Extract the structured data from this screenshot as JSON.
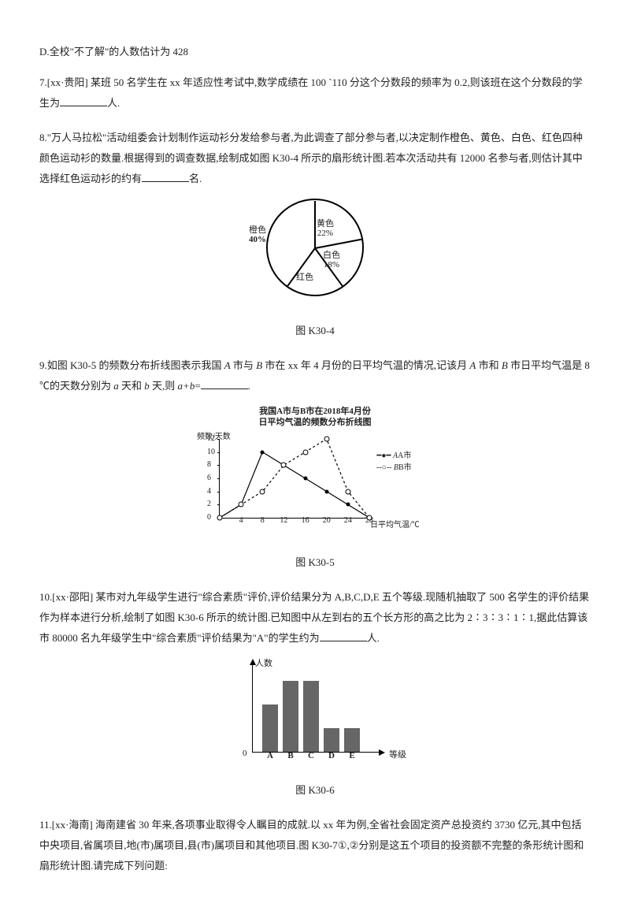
{
  "q_d": "D.全校\"不了解\"的人数估计为 428",
  "q7": {
    "text_a": "7.[xx·贵阳] 某班 50 名学生在 xx 年适应性考试中,数学成绩在 100 `110 分这个分数段的频率为 0.2,则该班在这个分数段的学生为",
    "text_b": "人."
  },
  "q8": {
    "p1": "8.\"万人马拉松\"活动组委会计划制作运动衫分发给参与者,为此调查了部分参与者,以决定制作橙色、黄色、白色、红色四种颜色运动衫的数量.根据得到的调查数据,绘制成如图 K30-4 所示的扇形统计图.若本次活动共有 12000 名参与者,则估计其中选择红色运动衫的约有",
    "p2": "名.",
    "caption": "图 K30-4",
    "pie": {
      "slices": [
        {
          "label": "橙色",
          "value": "40%",
          "angle": -90
        },
        {
          "label": "黄色",
          "value": "22%",
          "angle": 0
        },
        {
          "label": "白色",
          "value": "18%",
          "angle": 79.2
        },
        {
          "label": "红色",
          "value": "",
          "angle": 144
        }
      ]
    }
  },
  "q9": {
    "text_a": "9.如图 K30-5 的频数分布折线图表示我国 ",
    "text_b": " 市与 ",
    "text_c": " 市在 xx 年 4 月份的日平均气温的情况,记该月 ",
    "text_d": " 市和 ",
    "text_e": " 市日平均气温是 8 ℃的天数分别为 ",
    "text_f": " 天和 ",
    "text_g": " 天,则 ",
    "text_h": "=",
    "A": "A",
    "B": "B",
    "a": "a",
    "b": "b",
    "ab": "a+b",
    "caption": "图 K30-5",
    "chart": {
      "title1": "我国A市与B市在2018年4月份",
      "title2": "日平均气温的频数分布折线图",
      "ylabel": "频数/天数",
      "xlabel": "日平均气温/℃",
      "legendA": "A市",
      "legendB": "B市",
      "yticks": [
        0,
        2,
        4,
        6,
        8,
        10,
        12
      ],
      "xticks": [
        4,
        8,
        12,
        16,
        20,
        24,
        28
      ],
      "seriesA": [
        0,
        2,
        10,
        8,
        6,
        4,
        2,
        0
      ],
      "seriesB": [
        0,
        2,
        4,
        8,
        10,
        12,
        4,
        0
      ]
    }
  },
  "q10": {
    "p1_a": "10.[xx·邵阳] 某市对九年级学生进行\"综合素质\"评价,评价结果分为 A,B,C,D,E 五个等级.现随机抽取了 500 名学生的评价结果作为样本进行分析,绘制了如图 K30-6 所示的统计图.已知图中从左到右的五个长方形的高之比为 2∶3∶3∶1∶1,据此估算该市 80000 名九年级学生中\"综合素质\"评价结果为\"A\"的学生约为",
    "p1_b": "人.",
    "caption": "图 K30-6",
    "chart": {
      "ylabel": "人数",
      "xlabel": "等级",
      "categories": [
        "A",
        "B",
        "C",
        "D",
        "E"
      ],
      "heights": [
        2,
        3,
        3,
        1,
        1
      ],
      "zero": "0"
    }
  },
  "q11": {
    "p1": "11.[xx·海南] 海南建省 30 年来,各项事业取得令人瞩目的成就.以 xx 年为例,全省社会固定资产总投资约 3730 亿元,其中包括中央项目,省属项目,地(市)属项目,县(市)属项目和其他项目.图 K30-7①,②分别是这五个项目的投资额不完整的条形统计图和扇形统计图.请完成下列问题:"
  }
}
